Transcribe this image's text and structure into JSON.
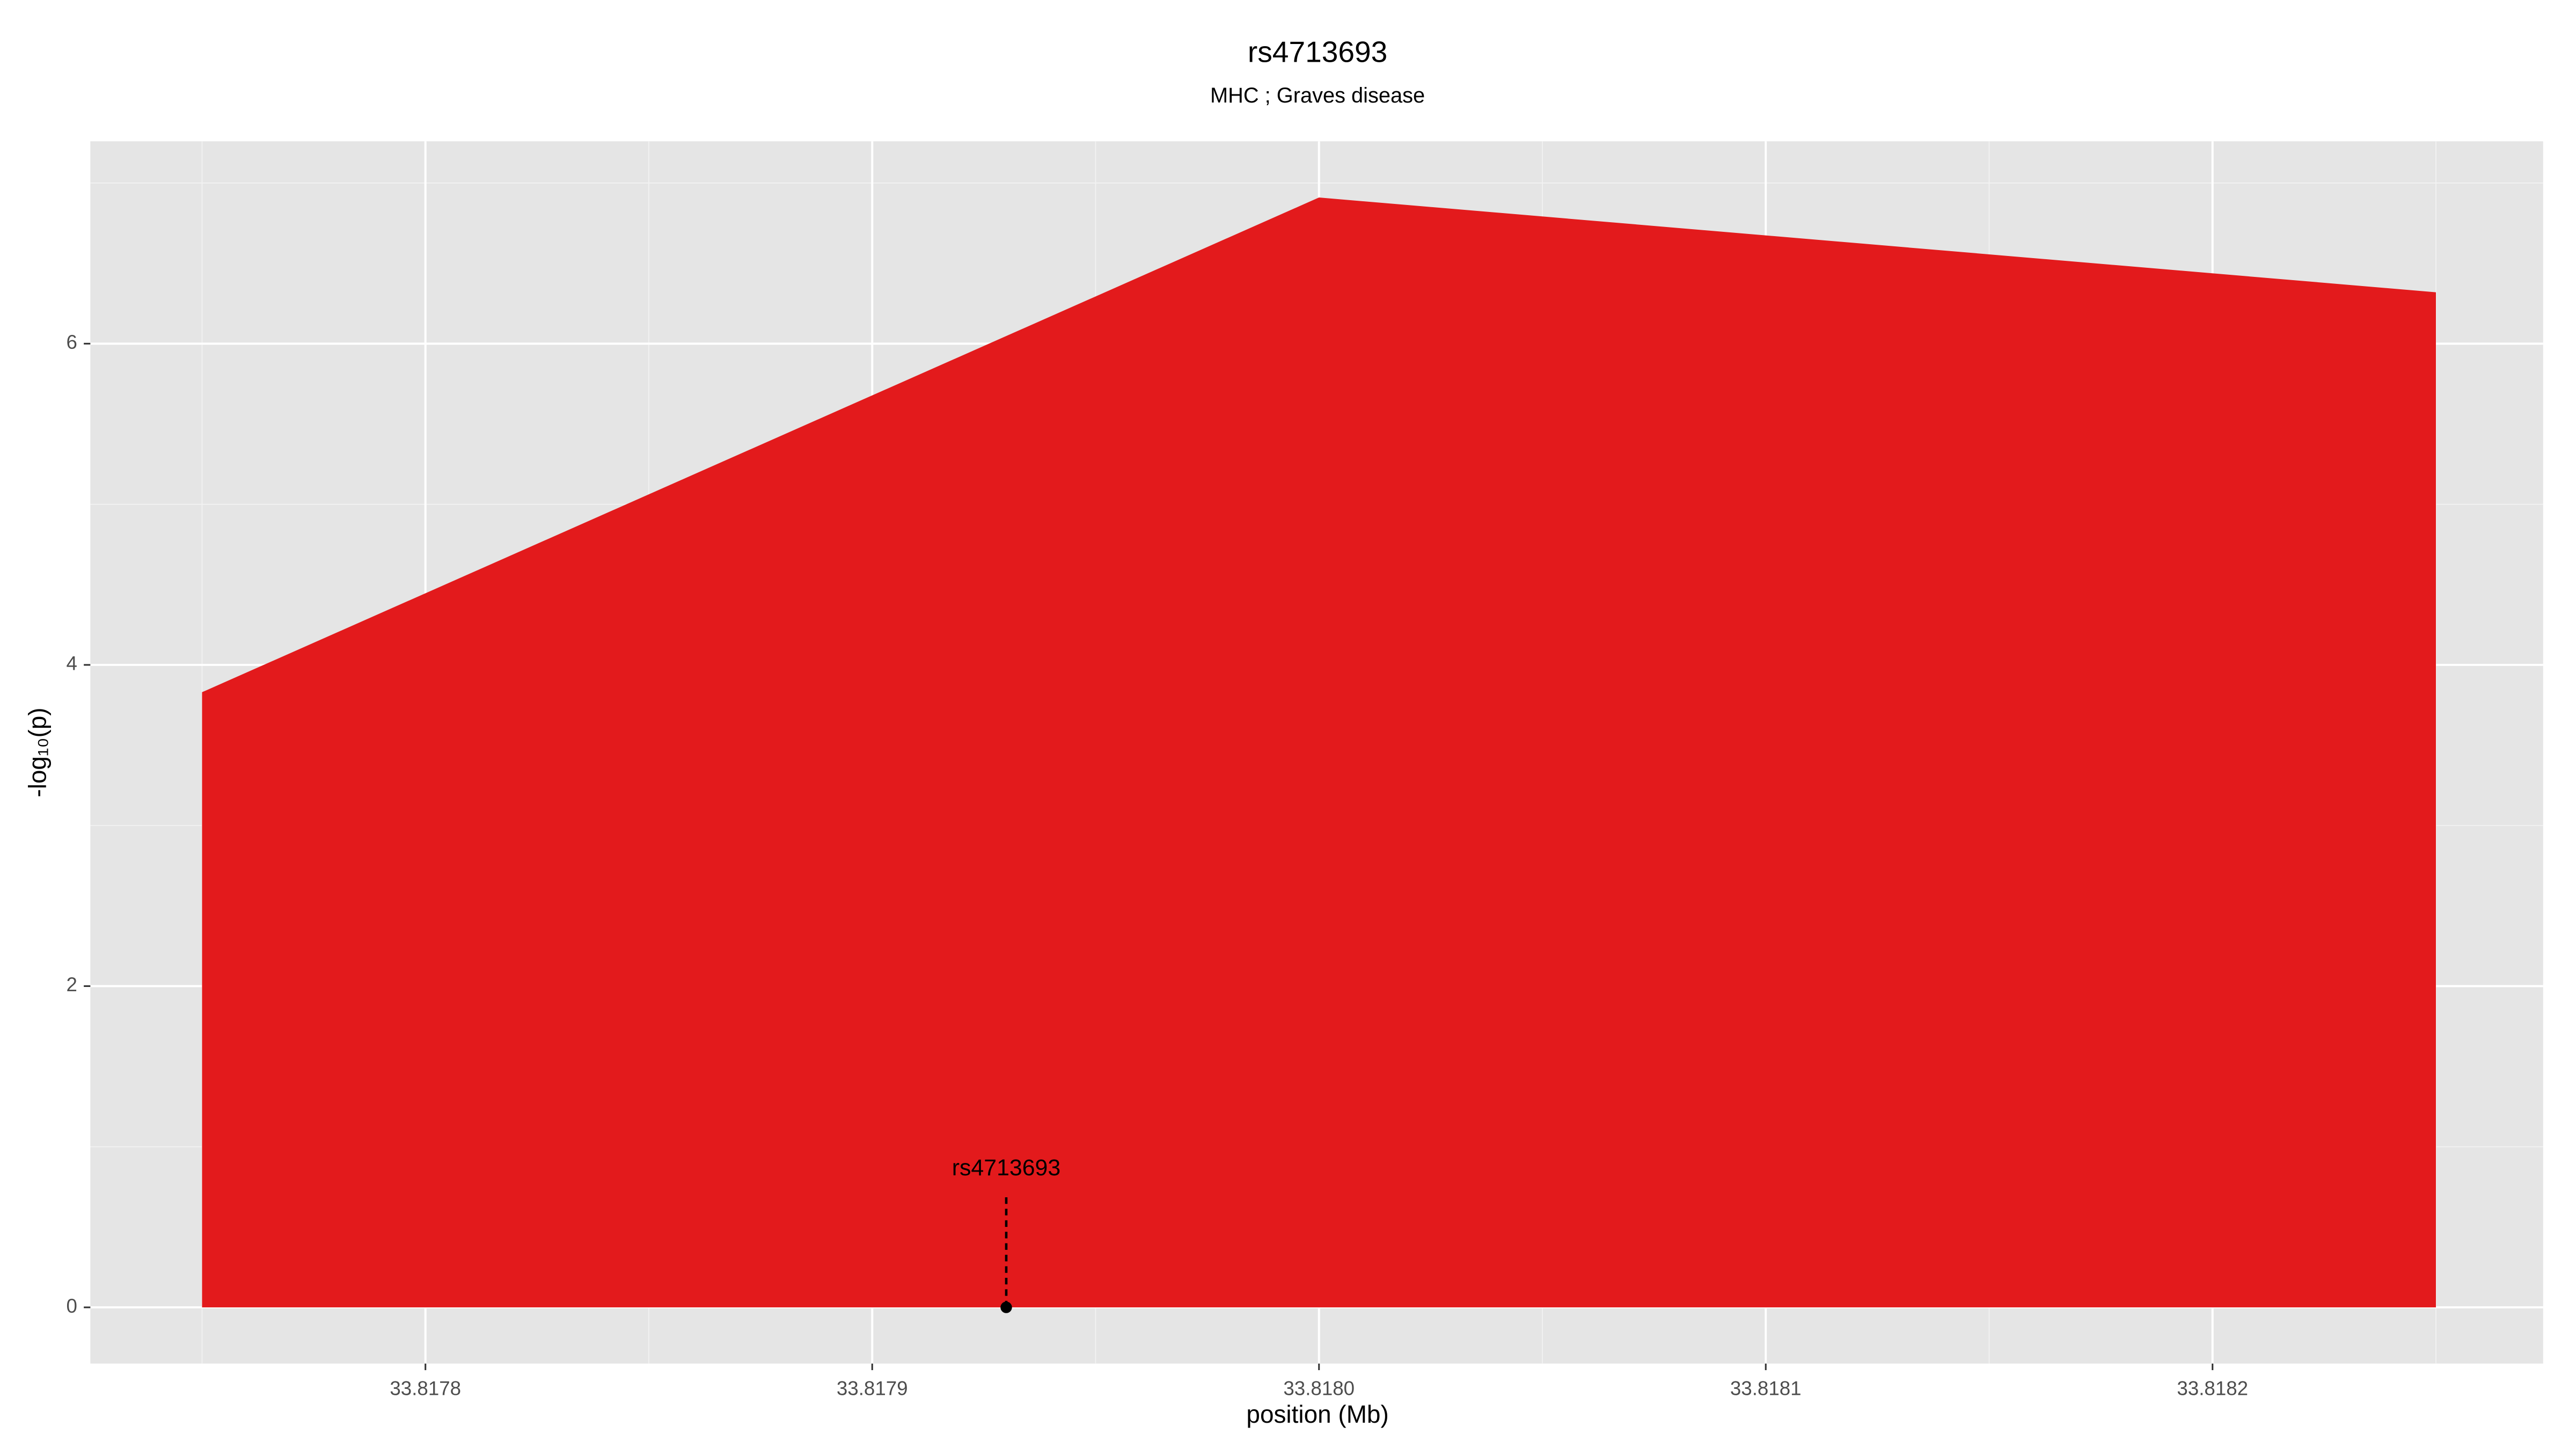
{
  "chart_data": {
    "type": "area",
    "title": "rs4713693",
    "subtitle": "MHC ; Graves disease",
    "x_label": "position (Mb)",
    "y_label": "-log₁₀(p)",
    "x": [
      33.81775,
      33.818,
      33.81825
    ],
    "values": [
      3.83,
      6.91,
      6.32
    ],
    "color": "#e31a1c",
    "xlim": [
      33.817725,
      33.818274
    ],
    "ylim": [
      -0.35,
      7.26
    ],
    "xticks": [
      33.8178,
      33.8179,
      {
        "value": 33.818,
        "label": "33.8180"
      },
      33.8181,
      33.8182
    ],
    "yticks": [
      0,
      2,
      4,
      6
    ],
    "grid": true,
    "annotations": [
      {
        "text": "rs4713693",
        "x": 33.81793,
        "y": 0
      }
    ]
  }
}
